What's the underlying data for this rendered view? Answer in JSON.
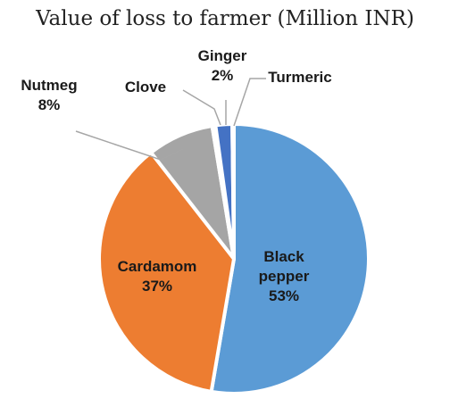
{
  "chart_data": {
    "type": "pie",
    "title": "Value of loss to farmer  (Million INR)",
    "slices": [
      {
        "label": "Black pepper",
        "label_lines": [
          "Black",
          "pepper"
        ],
        "value": 53,
        "display": "53%",
        "color": "#5b9bd5",
        "text_color": "#1a1a1a"
      },
      {
        "label": "Cardamom",
        "label_lines": [
          "Cardamom"
        ],
        "value": 37,
        "display": "37%",
        "color": "#ed7d31",
        "text_color": "#1a1a1a"
      },
      {
        "label": "Nutmeg",
        "label_lines": [
          "Nutmeg"
        ],
        "value": 8,
        "display": "8%",
        "color": "#a5a5a5",
        "text_color": "#1a1a1a"
      },
      {
        "label": "Clove",
        "label_lines": [
          "Clove"
        ],
        "value": 0.4,
        "display": "",
        "color": "#ffc000",
        "text_color": "#1a1a1a"
      },
      {
        "label": "Ginger",
        "label_lines": [
          "Ginger"
        ],
        "value": 2,
        "display": "2%",
        "color": "#4472c4",
        "text_color": "#1a1a1a"
      },
      {
        "label": "Turmeric",
        "label_lines": [
          "Turmeric"
        ],
        "value": 0.2,
        "display": "",
        "color": "#70ad47",
        "text_color": "#1a1a1a"
      }
    ],
    "legend": "none",
    "data_labels": "category-and-percent"
  }
}
